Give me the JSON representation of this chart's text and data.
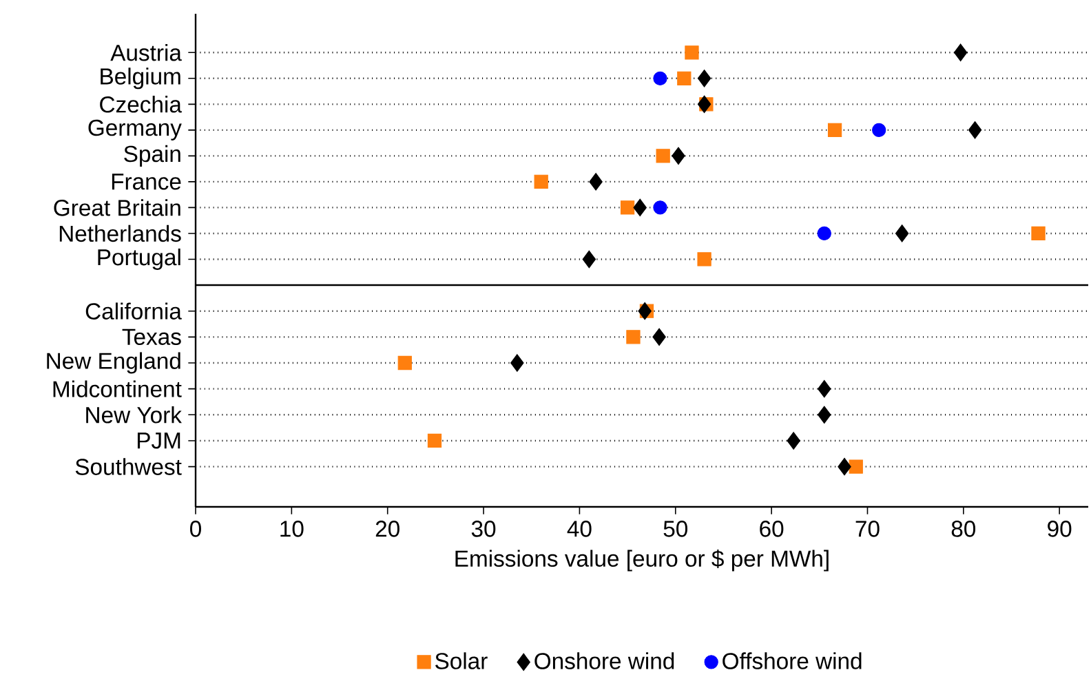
{
  "chart_data": [
    {
      "type": "scatter",
      "categories": [
        "Austria",
        "Belgium",
        "Czechia",
        "Germany",
        "Spain",
        "France",
        "Great Britain",
        "Netherlands",
        "Portugal"
      ],
      "series": [
        {
          "color": "#ff7f0e",
          "marker": "square",
          "values": [
            51.7,
            50.9,
            53.2,
            66.6,
            48.7,
            36.0,
            45.0,
            87.8,
            53.0
          ]
        },
        {
          "color": "#000000",
          "marker": "diamond",
          "values": [
            79.7,
            53.0,
            53.0,
            81.2,
            50.3,
            41.7,
            46.3,
            73.6,
            41.0
          ]
        },
        {
          "color": "#0000ff",
          "marker": "circle",
          "values": [
            null,
            48.4,
            null,
            71.2,
            null,
            null,
            48.4,
            65.5,
            null
          ]
        }
      ],
      "xlim": [
        0,
        93
      ],
      "xticks": [
        0,
        10,
        20,
        30,
        40,
        50,
        60,
        70,
        80,
        90
      ],
      "orientation": "horizontal",
      "grid": "y",
      "tick_labels": "y",
      "legend": false
    },
    {
      "type": "scatter",
      "categories": [
        "California",
        "Texas",
        "New England",
        "Midcontinent",
        "New York",
        "PJM",
        "Southwest"
      ],
      "series": [
        {
          "name": "Solar",
          "color": "#ff7f0e",
          "marker": "square",
          "values": [
            47.0,
            45.6,
            21.8,
            null,
            null,
            24.9,
            68.8
          ]
        },
        {
          "name": "Onshore wind",
          "color": "#000000",
          "marker": "diamond",
          "values": [
            46.8,
            48.3,
            33.5,
            65.5,
            65.5,
            62.3,
            67.6
          ]
        },
        {
          "name": "Offshore wind",
          "color": "#0000ff",
          "marker": "circle",
          "values": [
            null,
            null,
            null,
            null,
            null,
            null,
            null
          ]
        }
      ],
      "xlim": [
        0,
        93
      ],
      "xticks": [
        0,
        10,
        20,
        30,
        40,
        50,
        60,
        70,
        80,
        90
      ],
      "xlabel": "Emissions value [euro or $ per MWh]",
      "orientation": "horizontal",
      "grid": "y",
      "legend": "bottom"
    }
  ]
}
